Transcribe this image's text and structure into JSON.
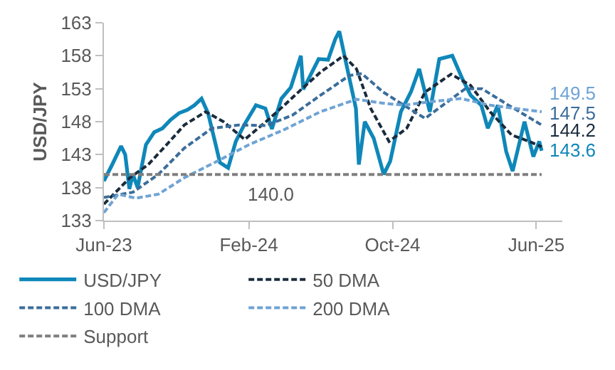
{
  "chart_data": {
    "type": "line",
    "ylabel": "USD/JPY",
    "xlim": [
      "2023-06-01",
      "2025-07-15"
    ],
    "xticks": [
      {
        "value": "2023-06-01",
        "label": "Jun-23"
      },
      {
        "value": "2024-02-01",
        "label": "Feb-24"
      },
      {
        "value": "2024-10-01",
        "label": "Oct-24"
      },
      {
        "value": "2025-06-01",
        "label": "Jun-25"
      }
    ],
    "ylim": [
      133,
      163
    ],
    "yticks": [
      133,
      138,
      143,
      148,
      153,
      158,
      163
    ],
    "legend": "bottom",
    "marker": "none",
    "series": [
      {
        "name": "USD/JPY",
        "color": "#0f87b9",
        "line_style": "solid",
        "x": [
          "2023-06-01",
          "2023-06-15",
          "2023-06-30",
          "2023-07-07",
          "2023-07-14",
          "2023-07-20",
          "2023-07-28",
          "2023-08-11",
          "2023-08-25",
          "2023-09-08",
          "2023-09-22",
          "2023-10-06",
          "2023-10-20",
          "2023-11-01",
          "2023-11-13",
          "2023-11-24",
          "2023-12-07",
          "2023-12-14",
          "2023-12-28",
          "2024-01-10",
          "2024-01-24",
          "2024-02-13",
          "2024-02-29",
          "2024-03-11",
          "2024-03-27",
          "2024-04-12",
          "2024-04-29",
          "2024-05-03",
          "2024-05-29",
          "2024-06-14",
          "2024-06-26",
          "2024-07-03",
          "2024-07-12",
          "2024-07-31",
          "2024-08-05",
          "2024-08-15",
          "2024-08-30",
          "2024-09-16",
          "2024-09-27",
          "2024-10-15",
          "2024-11-01",
          "2024-11-15",
          "2024-12-03",
          "2024-12-19",
          "2025-01-10",
          "2025-01-27",
          "2025-02-10",
          "2025-02-28",
          "2025-03-11",
          "2025-03-28",
          "2025-04-11",
          "2025-04-22",
          "2025-05-12",
          "2025-05-27",
          "2025-06-06",
          "2025-06-10"
        ],
        "values": [
          139.0,
          141.5,
          144.3,
          143.0,
          137.8,
          140.0,
          138.0,
          144.5,
          146.4,
          147.0,
          148.3,
          149.3,
          149.8,
          150.5,
          151.5,
          149.3,
          144.5,
          141.8,
          141.0,
          145.0,
          147.5,
          150.5,
          150.0,
          146.9,
          151.5,
          153.2,
          158.0,
          152.9,
          157.5,
          157.4,
          160.5,
          161.7,
          157.9,
          150.0,
          141.5,
          148.0,
          145.5,
          140.0,
          142.0,
          149.5,
          152.5,
          156.0,
          149.5,
          157.5,
          158.0,
          154.5,
          152.0,
          150.5,
          147.0,
          150.5,
          143.5,
          140.5,
          148.0,
          142.7,
          145.0,
          143.6
        ],
        "value_labels": [
          null,
          null,
          null,
          null,
          null,
          null,
          null,
          null,
          null,
          null,
          null,
          null,
          null,
          null,
          null,
          null,
          null,
          null,
          null,
          null,
          null,
          null,
          null,
          null,
          null,
          null,
          null,
          null,
          null,
          null,
          null,
          null,
          null,
          null,
          null,
          null,
          null,
          null,
          null,
          null,
          null,
          null,
          null,
          null,
          null,
          null,
          null,
          null,
          null,
          null,
          null,
          null,
          null,
          null,
          null,
          "143.6"
        ]
      },
      {
        "name": "50 DMA",
        "color": "#1a2b3c",
        "line_style": "dashed",
        "x": [
          "2023-06-01",
          "2023-07-15",
          "2023-08-15",
          "2023-09-15",
          "2023-10-15",
          "2023-11-20",
          "2023-12-20",
          "2024-01-25",
          "2024-03-01",
          "2024-04-01",
          "2024-05-01",
          "2024-06-01",
          "2024-07-10",
          "2024-08-01",
          "2024-08-25",
          "2024-09-25",
          "2024-10-25",
          "2024-11-25",
          "2025-01-08",
          "2025-02-10",
          "2025-03-15",
          "2025-04-20",
          "2025-05-20",
          "2025-06-10"
        ],
        "values": [
          135.5,
          139.5,
          141.5,
          144.5,
          147.5,
          149.5,
          148.0,
          145.3,
          148.0,
          150.5,
          153.0,
          155.5,
          158.0,
          156.0,
          150.0,
          145.0,
          147.0,
          152.5,
          155.2,
          153.5,
          149.5,
          146.0,
          145.0,
          144.2
        ],
        "value_labels": [
          null,
          null,
          null,
          null,
          null,
          null,
          null,
          null,
          null,
          null,
          null,
          null,
          null,
          null,
          null,
          null,
          null,
          null,
          null,
          null,
          null,
          null,
          null,
          "144.2"
        ]
      },
      {
        "name": "100 DMA",
        "color": "#3a6d9b",
        "line_style": "dashed",
        "x": [
          "2023-06-01",
          "2023-07-20",
          "2023-09-01",
          "2023-10-15",
          "2023-12-01",
          "2024-01-15",
          "2024-03-01",
          "2024-04-15",
          "2024-06-01",
          "2024-07-20",
          "2024-08-10",
          "2024-09-15",
          "2024-10-20",
          "2024-11-25",
          "2024-12-25",
          "2025-02-01",
          "2025-03-01",
          "2025-04-15",
          "2025-06-10"
        ],
        "values": [
          136.5,
          137.3,
          140.0,
          144.0,
          147.0,
          147.5,
          147.4,
          149.0,
          152.0,
          155.0,
          155.3,
          152.5,
          150.5,
          148.5,
          150.5,
          153.0,
          153.0,
          150.5,
          147.5
        ],
        "value_labels": [
          null,
          null,
          null,
          null,
          null,
          null,
          null,
          null,
          null,
          null,
          null,
          null,
          null,
          null,
          null,
          null,
          null,
          null,
          "147.5"
        ]
      },
      {
        "name": "200 DMA",
        "color": "#6fa3d4",
        "line_style": "dashed",
        "x": [
          "2023-06-01",
          "2023-06-25",
          "2023-07-25",
          "2023-09-01",
          "2023-10-15",
          "2023-12-05",
          "2024-02-01",
          "2024-04-01",
          "2024-06-01",
          "2024-08-01",
          "2024-09-15",
          "2024-10-20",
          "2024-12-01",
          "2025-01-25",
          "2025-03-15",
          "2025-06-10"
        ],
        "values": [
          134.2,
          137.0,
          136.4,
          137.0,
          139.5,
          141.8,
          144.5,
          146.8,
          149.5,
          151.4,
          150.8,
          150.5,
          151.0,
          151.5,
          150.5,
          149.5
        ],
        "value_labels": [
          null,
          null,
          null,
          null,
          null,
          null,
          null,
          null,
          null,
          null,
          null,
          null,
          null,
          null,
          null,
          "149.5"
        ]
      },
      {
        "name": "Support",
        "color": "#7f7f7f",
        "line_style": "dashed",
        "x": [
          "2023-06-01",
          "2024-03-10",
          "2025-06-10"
        ],
        "values": [
          140.0,
          140.0,
          140.0
        ],
        "value_labels": [
          null,
          "140.0",
          null
        ]
      }
    ]
  }
}
